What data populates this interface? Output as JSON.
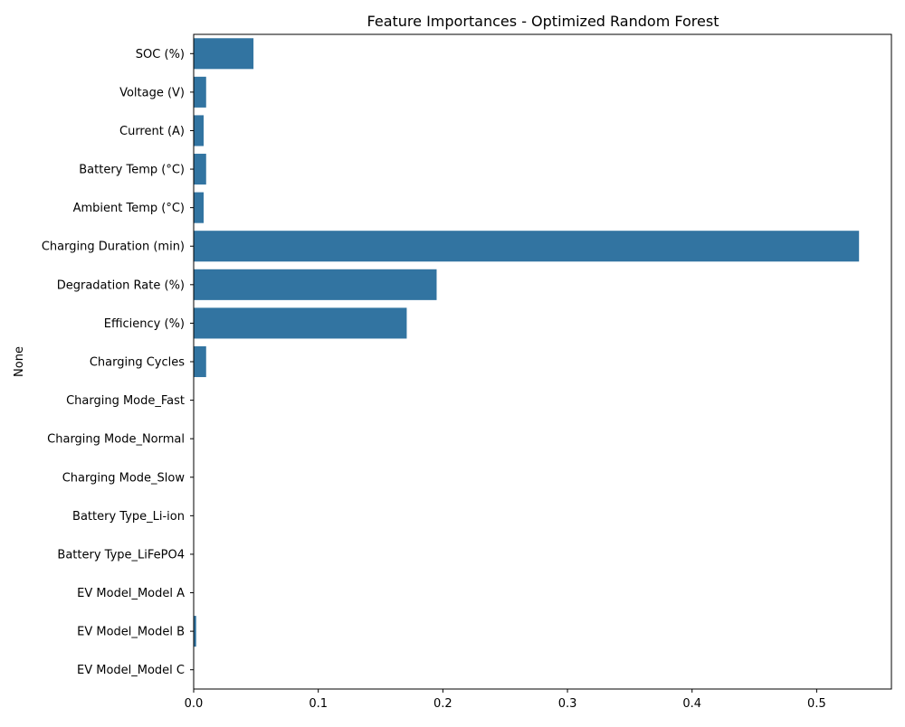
{
  "chart_data": {
    "type": "bar",
    "orientation": "horizontal",
    "title": "Feature Importances - Optimized Random Forest",
    "xlabel": "",
    "ylabel": "None",
    "xlim": [
      0,
      0.56
    ],
    "xticks": [
      0,
      0.1,
      0.2,
      0.3,
      0.4,
      0.5
    ],
    "xtick_labels": [
      "0.0",
      "0.1",
      "0.2",
      "0.3",
      "0.4",
      "0.5"
    ],
    "grid": false,
    "legend": "none",
    "bar_color": "#3274a1",
    "categories": [
      "SOC (%)",
      "Voltage (V)",
      "Current (A)",
      "Battery Temp (°C)",
      "Ambient Temp (°C)",
      "Charging Duration (min)",
      "Degradation Rate (%)",
      "Efficiency (%)",
      "Charging Cycles",
      "Charging Mode_Fast",
      "Charging Mode_Normal",
      "Charging Mode_Slow",
      "Battery Type_Li-ion",
      "Battery Type_LiFePO4",
      "EV Model_Model A",
      "EV Model_Model B",
      "EV Model_Model C"
    ],
    "values": [
      0.048,
      0.01,
      0.008,
      0.01,
      0.008,
      0.534,
      0.195,
      0.171,
      0.01,
      0.0,
      0.0,
      0.0,
      0.0,
      0.0,
      0.0,
      0.002,
      0.0
    ]
  }
}
